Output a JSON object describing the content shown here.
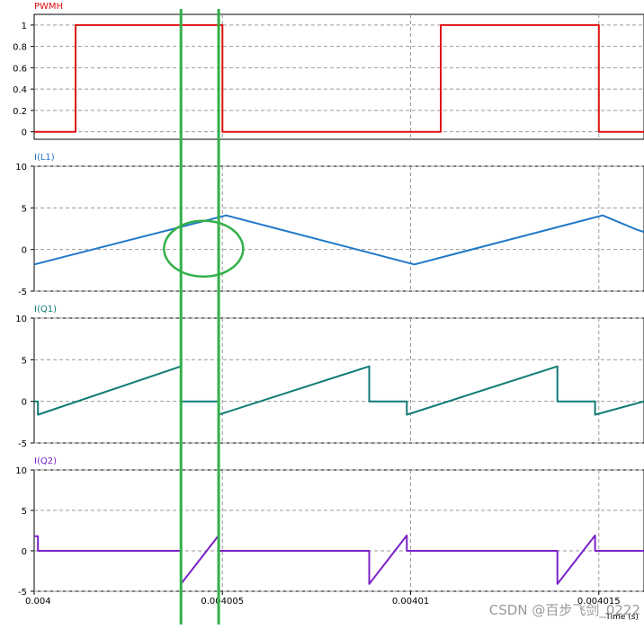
{
  "chart_data": [
    {
      "type": "line",
      "title": "PWMH",
      "color": "#e01010",
      "y_ticks": [
        "1",
        "0.8",
        "0.6",
        "0.4",
        "0.2",
        "0"
      ],
      "y_tick_values": [
        1,
        0.8,
        0.6,
        0.4,
        0.2,
        0
      ],
      "ylim": [
        -0.07,
        1.1
      ],
      "xlim": [
        0.004,
        0.0040162
      ],
      "grid": true,
      "series": [
        {
          "x": [
            0.004,
            0.0040011,
            0.0040011,
            0.004005,
            0.004005,
            0.0040108,
            0.0040108,
            0.004015,
            0.004015,
            0.0040162
          ],
          "y": [
            0,
            0,
            1,
            1,
            0,
            0,
            1,
            1,
            0,
            0
          ]
        }
      ]
    },
    {
      "type": "line",
      "title": "I(L1)",
      "color": "#1f78c8",
      "y_ticks": [
        "10",
        "5",
        "0",
        "-5"
      ],
      "y_tick_values": [
        10,
        5,
        0,
        -5
      ],
      "ylim": [
        -5,
        10
      ],
      "xlim": [
        0.004,
        0.0040162
      ],
      "grid": true,
      "series": [
        {
          "x": [
            0.004,
            0.0040051,
            0.0040101,
            0.0040151,
            0.004016,
            0.0040162
          ],
          "y": [
            -1.8,
            4.1,
            -1.8,
            4.1,
            2.4,
            2.1
          ]
        }
      ]
    },
    {
      "type": "line",
      "title": "I(Q1)",
      "color": "#0f7c74",
      "y_ticks": [
        "10",
        "5",
        "0",
        "-5"
      ],
      "y_tick_values": [
        10,
        5,
        0,
        -5
      ],
      "ylim": [
        -5,
        10
      ],
      "xlim": [
        0.004,
        0.0040162
      ],
      "grid": true,
      "series": [
        {
          "x": [
            0.004,
            0.0040001,
            0.0040001,
            0.0040039,
            0.0040039,
            0.0040049,
            0.0040049,
            0.0040089,
            0.0040089,
            0.0040099,
            0.0040099,
            0.0040139,
            0.0040139,
            0.0040149,
            0.0040149,
            0.0040162
          ],
          "y": [
            0,
            0,
            -1.6,
            4.2,
            0,
            0,
            -1.6,
            4.2,
            0,
            0,
            -1.6,
            4.2,
            0,
            0,
            -1.6,
            0
          ]
        }
      ]
    },
    {
      "type": "line",
      "title": "I(Q2)",
      "color": "#7b22c8",
      "y_ticks": [
        "10",
        "5",
        "0",
        "-5"
      ],
      "y_tick_values": [
        10,
        5,
        0,
        -5
      ],
      "ylim": [
        -5,
        10
      ],
      "xlim": [
        0.004,
        0.0040162
      ],
      "grid": true,
      "x_ticks": [
        "0.004",
        "0.004005",
        "0.00401",
        "0.004015"
      ],
      "x_tick_values": [
        0.004,
        0.004005,
        0.00401,
        0.004015
      ],
      "xlabel": "Time (s)",
      "series": [
        {
          "x": [
            0.004,
            0.0040001,
            0.0040001,
            0.0040039,
            0.0040039,
            0.0040049,
            0.0040049,
            0.0040089,
            0.0040089,
            0.0040099,
            0.0040099,
            0.0040139,
            0.0040139,
            0.0040149,
            0.0040149,
            0.0040162
          ],
          "y": [
            1.8,
            1.8,
            0,
            0,
            -4.1,
            1.9,
            0,
            0,
            -4.1,
            1.9,
            0,
            0,
            -4.1,
            1.9,
            0,
            0
          ]
        }
      ]
    }
  ],
  "annotations": {
    "marker_color": "#33b04a",
    "marker_times": [
      0.0040039,
      0.0040049
    ],
    "ellipse_center": {
      "t": 0.0040045,
      "value": 0.1
    },
    "watermark": "CSDN @百步飞剑_0222"
  }
}
